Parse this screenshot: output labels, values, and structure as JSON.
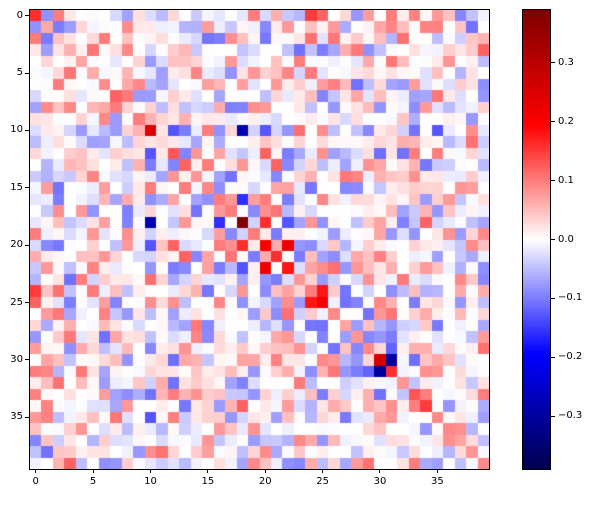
{
  "figure": {
    "background": "#ffffff"
  },
  "chart_data": {
    "type": "heatmap",
    "title": "",
    "xlabel": "",
    "ylabel": "",
    "description": "40x40 diverging (correlation/covariance-style) heatmap, mostly near-zero values with scattered strong positive (red) and negative (blue) cells, faint positive diagonal, seismic blue-white-red colormap with right-hand colorbar",
    "x_tick_labels": [
      "0",
      "5",
      "10",
      "15",
      "20",
      "25",
      "30",
      "35"
    ],
    "y_tick_labels": [
      "0",
      "5",
      "10",
      "15",
      "20",
      "25",
      "30",
      "35"
    ],
    "x_tick_positions": [
      0,
      5,
      10,
      15,
      20,
      25,
      30,
      35
    ],
    "y_tick_positions": [
      0,
      5,
      10,
      15,
      20,
      25,
      30,
      35
    ],
    "colormap": {
      "name": "seismic",
      "anchors": [
        "#00004d",
        "#0000ff",
        "#ffffff",
        "#ff0000",
        "#7f0000"
      ],
      "anchor_positions": [
        0,
        0.25,
        0.5,
        0.75,
        1
      ]
    },
    "colorbar": {
      "tick_labels": [
        "0.3",
        "0.2",
        "0.1",
        "0.0",
        "−0.1",
        "−0.2",
        "−0.3"
      ],
      "tick_values": [
        0.3,
        0.2,
        0.1,
        0.0,
        -0.1,
        -0.2,
        -0.3
      ]
    },
    "matrix": {
      "size": 40,
      "vmin": -0.39,
      "vmax": 0.39,
      "symmetric": true,
      "noise_seed": 7,
      "noise_amp": 0.11,
      "diag_bias": 0.06,
      "cells": [
        [
          0,
          0,
          0.16
        ],
        [
          0,
          25,
          0.12
        ],
        [
          0,
          31,
          0.1
        ],
        [
          3,
          39,
          0.12
        ],
        [
          7,
          7,
          0.12
        ],
        [
          8,
          0,
          -0.07
        ],
        [
          9,
          9,
          0.1
        ],
        [
          10,
          10,
          0.24
        ],
        [
          10,
          12,
          -0.13
        ],
        [
          10,
          13,
          -0.1
        ],
        [
          10,
          18,
          -0.28
        ],
        [
          10,
          20,
          -0.13
        ],
        [
          10,
          22,
          -0.08
        ],
        [
          10,
          35,
          -0.13
        ],
        [
          12,
          12,
          0.13
        ],
        [
          12,
          14,
          0.08
        ],
        [
          12,
          16,
          0.07
        ],
        [
          12,
          20,
          0.12
        ],
        [
          12,
          22,
          -0.1
        ],
        [
          13,
          13,
          0.12
        ],
        [
          13,
          15,
          0.1
        ],
        [
          13,
          18,
          0.08
        ],
        [
          13,
          21,
          0.12
        ],
        [
          13,
          22,
          -0.09
        ],
        [
          14,
          14,
          0.08
        ],
        [
          14,
          16,
          -0.07
        ],
        [
          15,
          15,
          0.09
        ],
        [
          15,
          21,
          0.07
        ],
        [
          16,
          16,
          0.1
        ],
        [
          16,
          18,
          -0.16
        ],
        [
          16,
          20,
          0.1
        ],
        [
          16,
          22,
          -0.1
        ],
        [
          17,
          17,
          0.1
        ],
        [
          17,
          19,
          -0.09
        ],
        [
          18,
          18,
          0.39
        ],
        [
          18,
          20,
          0.16
        ],
        [
          18,
          22,
          -0.13
        ],
        [
          18,
          24,
          0.08
        ],
        [
          18,
          30,
          0.07
        ],
        [
          18,
          34,
          0.12
        ],
        [
          19,
          19,
          0.1
        ],
        [
          19,
          21,
          -0.1
        ],
        [
          20,
          20,
          0.2
        ],
        [
          20,
          22,
          0.22
        ],
        [
          20,
          23,
          -0.08
        ],
        [
          21,
          21,
          0.16
        ],
        [
          21,
          23,
          -0.1
        ],
        [
          22,
          22,
          0.18
        ],
        [
          22,
          24,
          0.07
        ],
        [
          23,
          23,
          0.08
        ],
        [
          24,
          0,
          0.15
        ],
        [
          24,
          24,
          0.1
        ],
        [
          24,
          25,
          0.18
        ],
        [
          25,
          25,
          0.21
        ],
        [
          25,
          33,
          -0.1
        ],
        [
          26,
          26,
          0.09
        ],
        [
          26,
          30,
          0.08
        ],
        [
          27,
          27,
          0.07
        ],
        [
          27,
          31,
          -0.08
        ],
        [
          28,
          28,
          0.08
        ],
        [
          28,
          30,
          -0.08
        ],
        [
          28,
          31,
          -0.1
        ],
        [
          29,
          29,
          0.09
        ],
        [
          29,
          31,
          -0.12
        ],
        [
          30,
          30,
          0.26
        ],
        [
          30,
          31,
          -0.3
        ],
        [
          31,
          31,
          0.16
        ],
        [
          32,
          32,
          0.08
        ],
        [
          33,
          33,
          0.13
        ],
        [
          33,
          39,
          0.1
        ],
        [
          34,
          34,
          0.15
        ],
        [
          34,
          36,
          -0.08
        ],
        [
          35,
          35,
          0.09
        ],
        [
          36,
          36,
          0.09
        ],
        [
          37,
          37,
          0.07
        ],
        [
          38,
          38,
          0.08
        ],
        [
          39,
          39,
          0.09
        ]
      ]
    }
  }
}
